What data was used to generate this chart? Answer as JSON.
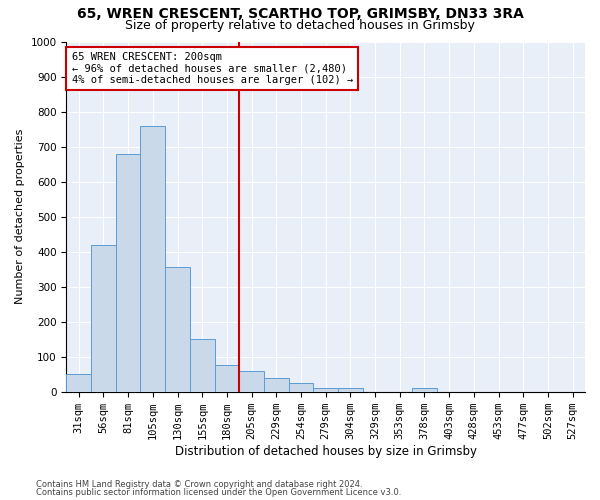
{
  "title1": "65, WREN CRESCENT, SCARTHO TOP, GRIMSBY, DN33 3RA",
  "title2": "Size of property relative to detached houses in Grimsby",
  "xlabel": "Distribution of detached houses by size in Grimsby",
  "ylabel": "Number of detached properties",
  "categories": [
    "31sqm",
    "56sqm",
    "81sqm",
    "105sqm",
    "130sqm",
    "155sqm",
    "180sqm",
    "205sqm",
    "229sqm",
    "254sqm",
    "279sqm",
    "304sqm",
    "329sqm",
    "353sqm",
    "378sqm",
    "403sqm",
    "428sqm",
    "453sqm",
    "477sqm",
    "502sqm",
    "527sqm"
  ],
  "values": [
    50,
    420,
    680,
    760,
    355,
    150,
    75,
    60,
    40,
    25,
    10,
    10,
    0,
    0,
    10,
    0,
    0,
    0,
    0,
    0,
    0
  ],
  "bar_color": "#c9d9ea",
  "bar_edge_color": "#5b9bd5",
  "bar_width": 1.0,
  "red_line_index": 7,
  "annotation_line1": "65 WREN CRESCENT: 200sqm",
  "annotation_line2": "← 96% of detached houses are smaller (2,480)",
  "annotation_line3": "4% of semi-detached houses are larger (102) →",
  "annotation_box_color": "#ffffff",
  "annotation_border_color": "#cc0000",
  "ylim": [
    0,
    1000
  ],
  "yticks": [
    0,
    100,
    200,
    300,
    400,
    500,
    600,
    700,
    800,
    900,
    1000
  ],
  "background_color": "#e8eff8",
  "footer1": "Contains HM Land Registry data © Crown copyright and database right 2024.",
  "footer2": "Contains public sector information licensed under the Open Government Licence v3.0.",
  "title1_fontsize": 10,
  "title2_fontsize": 9,
  "xlabel_fontsize": 8.5,
  "ylabel_fontsize": 8,
  "tick_fontsize": 7.5,
  "annotation_fontsize": 7.5,
  "footer_fontsize": 6
}
